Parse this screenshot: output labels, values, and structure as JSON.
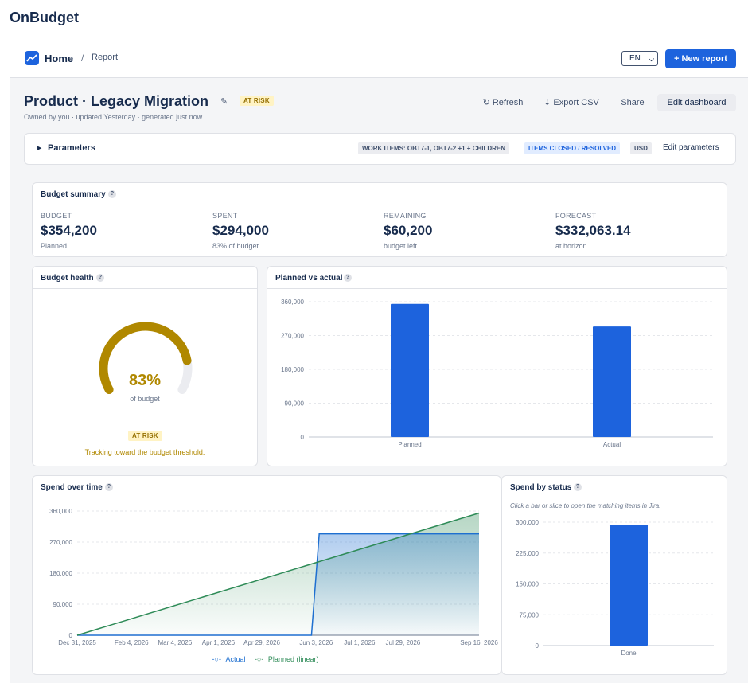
{
  "app": {
    "title": "OnBudget"
  },
  "topbar": {
    "home": "Home",
    "separator": "/",
    "current": "Report",
    "lang": "EN",
    "new_report": "+ New report"
  },
  "report": {
    "title": "Product · Legacy Migration",
    "status_badge": "AT RISK",
    "subline": "Owned by you · updated Yesterday · generated just now",
    "actions": {
      "refresh": "↻ Refresh",
      "export": "⇣ Export CSV",
      "share": "Share",
      "edit": "Edit dashboard"
    }
  },
  "parameters": {
    "label": "Parameters",
    "chips": [
      "WORK ITEMS: OBT7-1, OBT7-2 +1 + CHILDREN",
      "ITEMS CLOSED / RESOLVED",
      "USD"
    ],
    "edit": "Edit parameters"
  },
  "summary": {
    "title": "Budget summary",
    "kpis": [
      {
        "label": "BUDGET",
        "value": "$354,200",
        "sub": "Planned"
      },
      {
        "label": "SPENT",
        "value": "$294,000",
        "sub": "83% of budget"
      },
      {
        "label": "REMAINING",
        "value": "$60,200",
        "sub": "budget left"
      },
      {
        "label": "FORECAST",
        "value": "$332,063.14",
        "sub": "at horizon"
      }
    ]
  },
  "health": {
    "title": "Budget health",
    "percent_text": "83%",
    "percent_value": 0.83,
    "sub": "of budget",
    "badge": "AT RISK",
    "message": "Tracking toward the budget threshold.",
    "color": "#b08800"
  },
  "help_icon": "?",
  "colors": {
    "primary": "#1d63dd",
    "planned": "#2e8b57",
    "actual": "#1e6fd0",
    "risk": "#b08800"
  },
  "chart_data": [
    {
      "id": "planned_vs_actual",
      "type": "bar",
      "title": "Planned vs actual",
      "categories": [
        "Planned",
        "Actual"
      ],
      "values": [
        354200,
        294000
      ],
      "ylim": [
        0,
        360000
      ],
      "yticks": [
        0,
        90000,
        180000,
        270000,
        360000
      ],
      "ytick_labels": [
        "0",
        "90,000",
        "180,000",
        "270,000",
        "360,000"
      ],
      "grid": true
    },
    {
      "id": "spend_over_time",
      "type": "line",
      "title": "Spend over time",
      "x_labels": [
        "Dec 31, 2025",
        "Feb 4, 2026",
        "Mar 4, 2026",
        "Apr 1, 2026",
        "Apr 29, 2026",
        "Jun 3, 2026",
        "Jul 1, 2026",
        "Jul 29, 2026",
        "Sep 16, 2026"
      ],
      "x_tick_dates": [
        "2025-12-31",
        "2026-02-04",
        "2026-03-04",
        "2026-04-01",
        "2026-04-29",
        "2026-06-03",
        "2026-07-01",
        "2026-07-29",
        "2026-09-16"
      ],
      "xlim": [
        "2025-12-31",
        "2026-09-16"
      ],
      "ylim": [
        0,
        360000
      ],
      "yticks": [
        0,
        90000,
        180000,
        270000,
        360000
      ],
      "ytick_labels": [
        "0",
        "90,000",
        "180,000",
        "270,000",
        "360,000"
      ],
      "series": [
        {
          "name": "Actual",
          "color": "#1e6fd0",
          "points": [
            [
              "2025-12-31",
              0
            ],
            [
              "2026-05-31",
              0
            ],
            [
              "2026-06-05",
              294000
            ],
            [
              "2026-09-16",
              294000
            ]
          ]
        },
        {
          "name": "Planned (linear)",
          "color": "#2e8b57",
          "points": [
            [
              "2025-12-31",
              0
            ],
            [
              "2026-09-16",
              354200
            ]
          ]
        }
      ],
      "grid": true,
      "legend": "bottom"
    },
    {
      "id": "spend_by_status",
      "type": "bar",
      "title": "Spend by status",
      "note": "Click a bar or slice to open the matching items in Jira.",
      "categories": [
        "Done"
      ],
      "values": [
        294000
      ],
      "ylim": [
        0,
        300000
      ],
      "yticks": [
        0,
        75000,
        150000,
        225000,
        300000
      ],
      "ytick_labels": [
        "0",
        "75,000",
        "150,000",
        "225,000",
        "300,000"
      ],
      "grid": true
    }
  ]
}
